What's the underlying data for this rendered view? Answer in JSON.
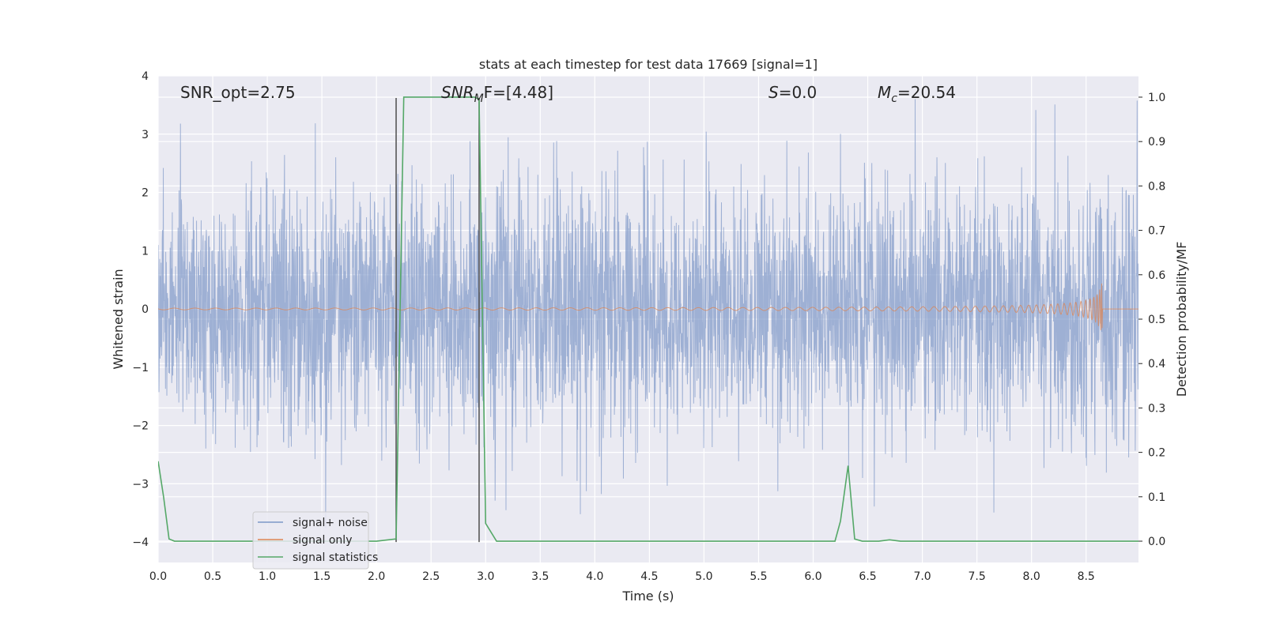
{
  "chart_data": {
    "type": "line",
    "title": "stats at each timestep for test data 17669 [signal=1]",
    "xlabel": "Time (s)",
    "ylabel": "Whitened strain",
    "y2label": "Detection probability/MF",
    "xlim": [
      0,
      8.98
    ],
    "ylim": [
      -4.35,
      4.0
    ],
    "y2lim": [
      -0.048,
      1.048
    ],
    "x_ticks": [
      "0.0",
      "0.5",
      "1.0",
      "1.5",
      "2.0",
      "2.5",
      "3.0",
      "3.5",
      "4.0",
      "4.5",
      "5.0",
      "5.5",
      "6.0",
      "6.5",
      "7.0",
      "7.5",
      "8.0",
      "8.5"
    ],
    "y_ticks": [
      "−4",
      "−3",
      "−2",
      "−1",
      "0",
      "1",
      "2",
      "3",
      "4"
    ],
    "y2_ticks": [
      "0.0",
      "0.1",
      "0.2",
      "0.3",
      "0.4",
      "0.5",
      "0.6",
      "0.7",
      "0.8",
      "0.9",
      "1.0"
    ],
    "grid": true,
    "legend_position": "lower-left",
    "annotations": {
      "snr_opt": "SNR_opt=2.75",
      "snr_mf_base": "SNR",
      "snr_mf_sub": "M",
      "snr_mf_rest": "F=[4.48]",
      "s_label": "S",
      "s_value": "=0.0",
      "mc_base": "M",
      "mc_sub": "c",
      "mc_value": "=20.54"
    },
    "vertical_markers": [
      2.18,
      2.94
    ],
    "series": [
      {
        "name": "signal+ noise",
        "color": "#7d97c8",
        "axis": "left",
        "description_of_values": "whitened strain noise, roughly gaussian spanning -4 to 3.6"
      },
      {
        "name": "signal only",
        "color": "#dd8452",
        "axis": "left",
        "chirp_end_time": 8.65,
        "chirp_peak_amplitude": 0.55
      },
      {
        "name": "signal statistics",
        "color": "#55a868",
        "axis": "right",
        "x": [
          0.0,
          0.05,
          0.1,
          0.15,
          0.5,
          1.0,
          1.5,
          2.0,
          2.18,
          2.25,
          2.5,
          2.9,
          2.94,
          3.0,
          3.1,
          3.5,
          4.0,
          5.0,
          6.0,
          6.2,
          6.25,
          6.32,
          6.38,
          6.45,
          6.6,
          6.7,
          6.8,
          7.0,
          8.0,
          8.98
        ],
        "values": [
          0.18,
          0.1,
          0.005,
          0.0,
          0.0,
          0.0,
          0.0,
          0.0,
          0.005,
          1.0,
          1.0,
          1.0,
          0.995,
          0.04,
          0.0,
          0.0,
          0.0,
          0.0,
          0.0,
          0.0,
          0.045,
          0.17,
          0.005,
          0.0,
          0.0,
          0.003,
          0.0,
          0.0,
          0.0,
          0.0
        ]
      }
    ]
  },
  "legend": {
    "items": [
      {
        "label": "signal+ noise",
        "color": "#7d97c8"
      },
      {
        "label": "signal only",
        "color": "#dd8452"
      },
      {
        "label": "signal statistics",
        "color": "#55a868"
      }
    ]
  }
}
